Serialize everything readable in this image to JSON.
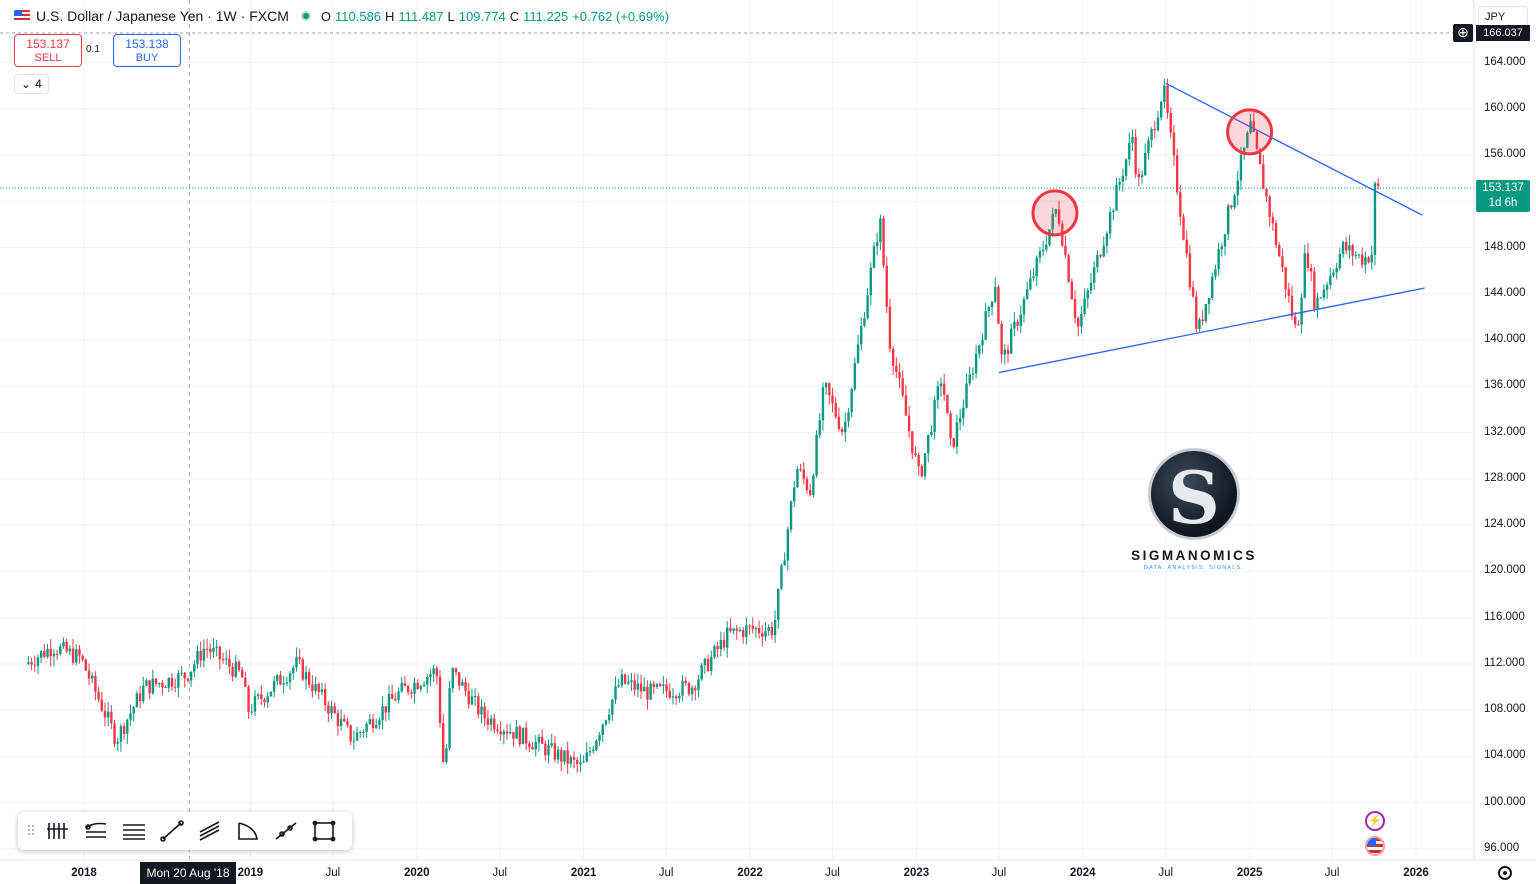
{
  "header": {
    "title": "U.S. Dollar / Japanese Yen · 1W · FXCM",
    "ohlc": [
      {
        "k": "O",
        "v": "110.586"
      },
      {
        "k": "H",
        "v": "111.487"
      },
      {
        "k": "L",
        "v": "109.774"
      },
      {
        "k": "C",
        "v": "111.225"
      }
    ],
    "change": "+0.762 (+0.69%)"
  },
  "trade": {
    "sell_price": "153.137",
    "sell_label": "SELL",
    "spread": "0.1",
    "buy_price": "153.138",
    "buy_label": "BUY"
  },
  "indicators_collapse": {
    "count": "4"
  },
  "currency": "JPY",
  "top_badge": "166.037",
  "last_price": {
    "value": "153.137",
    "countdown": "1d 6h"
  },
  "crosshair_date": "Mon 20 Aug '18",
  "logo": {
    "name": "SIGMANOMICS",
    "tagline": "DATA. ANALYSIS. SIGNALS."
  },
  "colors": {
    "up": "#089981",
    "down": "#f23645",
    "trendline": "#2962ff",
    "highlight": "#f23645"
  },
  "toolbar": {
    "tools": [
      "long-position-icon",
      "fib-retracement-icon",
      "parallel-channel-icon",
      "trend-line-icon",
      "pitchfork-icon",
      "arc-icon",
      "path-icon",
      "rectangle-icon"
    ]
  },
  "chart_data": {
    "type": "candlestick",
    "title": "U.S. Dollar / Japanese Yen · 1W · FXCM",
    "y_ticks": [
      "164.000",
      "160.000",
      "156.000",
      "152.000",
      "148.000",
      "144.000",
      "140.000",
      "136.000",
      "132.000",
      "128.000",
      "124.000",
      "120.000",
      "116.000",
      "112.000",
      "108.000",
      "104.000",
      "100.000",
      "96.000"
    ],
    "x_ticks": [
      "2018",
      "Mon 20 Aug '18",
      "2019",
      "Jul",
      "2020",
      "Jul",
      "2021",
      "Jul",
      "2022",
      "Jul",
      "2023",
      "Jul",
      "2024",
      "Jul",
      "2025",
      "Jul",
      "2026"
    ],
    "ylim": [
      95,
      167
    ],
    "path": [
      {
        "t": "2017-09-01",
        "p": 112.0
      },
      {
        "t": "2017-11-01",
        "p": 113.5
      },
      {
        "t": "2018-01-01",
        "p": 112.5
      },
      {
        "t": "2018-03-20",
        "p": 105.5
      },
      {
        "t": "2018-05-20",
        "p": 110.0
      },
      {
        "t": "2018-08-20",
        "p": 111.0
      },
      {
        "t": "2018-10-01",
        "p": 113.5
      },
      {
        "t": "2018-12-20",
        "p": 111.0
      },
      {
        "t": "2019-01-03",
        "p": 108.0
      },
      {
        "t": "2019-04-20",
        "p": 112.0
      },
      {
        "t": "2019-08-20",
        "p": 105.5
      },
      {
        "t": "2019-12-01",
        "p": 109.5
      },
      {
        "t": "2020-02-20",
        "p": 111.5
      },
      {
        "t": "2020-03-09",
        "p": 102.0
      },
      {
        "t": "2020-03-23",
        "p": 111.5
      },
      {
        "t": "2020-06-01",
        "p": 107.5
      },
      {
        "t": "2020-10-01",
        "p": 105.0
      },
      {
        "t": "2021-01-05",
        "p": 103.0
      },
      {
        "t": "2021-03-30",
        "p": 110.5
      },
      {
        "t": "2021-06-01",
        "p": 109.5
      },
      {
        "t": "2021-09-01",
        "p": 110.0
      },
      {
        "t": "2021-11-20",
        "p": 114.5
      },
      {
        "t": "2022-01-01",
        "p": 115.0
      },
      {
        "t": "2022-03-01",
        "p": 115.0
      },
      {
        "t": "2022-04-20",
        "p": 129.0
      },
      {
        "t": "2022-05-20",
        "p": 127.0
      },
      {
        "t": "2022-06-20",
        "p": 136.0
      },
      {
        "t": "2022-08-01",
        "p": 132.0
      },
      {
        "t": "2022-10-20",
        "p": 150.5
      },
      {
        "t": "2022-11-10",
        "p": 140.0
      },
      {
        "t": "2023-01-15",
        "p": 128.0
      },
      {
        "t": "2023-03-05",
        "p": 137.0
      },
      {
        "t": "2023-03-25",
        "p": 130.5
      },
      {
        "t": "2023-06-30",
        "p": 145.0
      },
      {
        "t": "2023-07-15",
        "p": 138.0
      },
      {
        "t": "2023-11-13",
        "p": 151.5
      },
      {
        "t": "2023-12-28",
        "p": 141.0
      },
      {
        "t": "2024-04-29",
        "p": 158.0
      },
      {
        "t": "2024-05-06",
        "p": 153.0
      },
      {
        "t": "2024-07-03",
        "p": 161.8
      },
      {
        "t": "2024-09-16",
        "p": 140.5
      },
      {
        "t": "2025-01-10",
        "p": 158.5
      },
      {
        "t": "2025-04-21",
        "p": 140.5
      },
      {
        "t": "2025-05-12",
        "p": 148.0
      },
      {
        "t": "2025-06-01",
        "p": 143.0
      },
      {
        "t": "2025-08-01",
        "p": 148.0
      },
      {
        "t": "2025-09-15",
        "p": 147.0
      },
      {
        "t": "2025-10-03",
        "p": 147.5
      },
      {
        "t": "2025-10-06",
        "p": 150.5
      },
      {
        "t": "2025-10-10",
        "p": 153.1
      }
    ],
    "trendlines": [
      {
        "name": "",
        "from": {
          "t": "2023-07-01",
          "p": 137.2
        },
        "to": {
          "t": "2026-01-20",
          "p": 144.5
        }
      },
      {
        "name": "",
        "from": {
          "t": "2024-07-01",
          "p": 162.2
        },
        "to": {
          "t": "2026-01-15",
          "p": 150.8
        }
      }
    ],
    "highlights": [
      {
        "t": "2023-11-01",
        "p": 151.0
      },
      {
        "t": "2025-01-01",
        "p": 158.0
      }
    ],
    "last_price_line": 153.137
  }
}
